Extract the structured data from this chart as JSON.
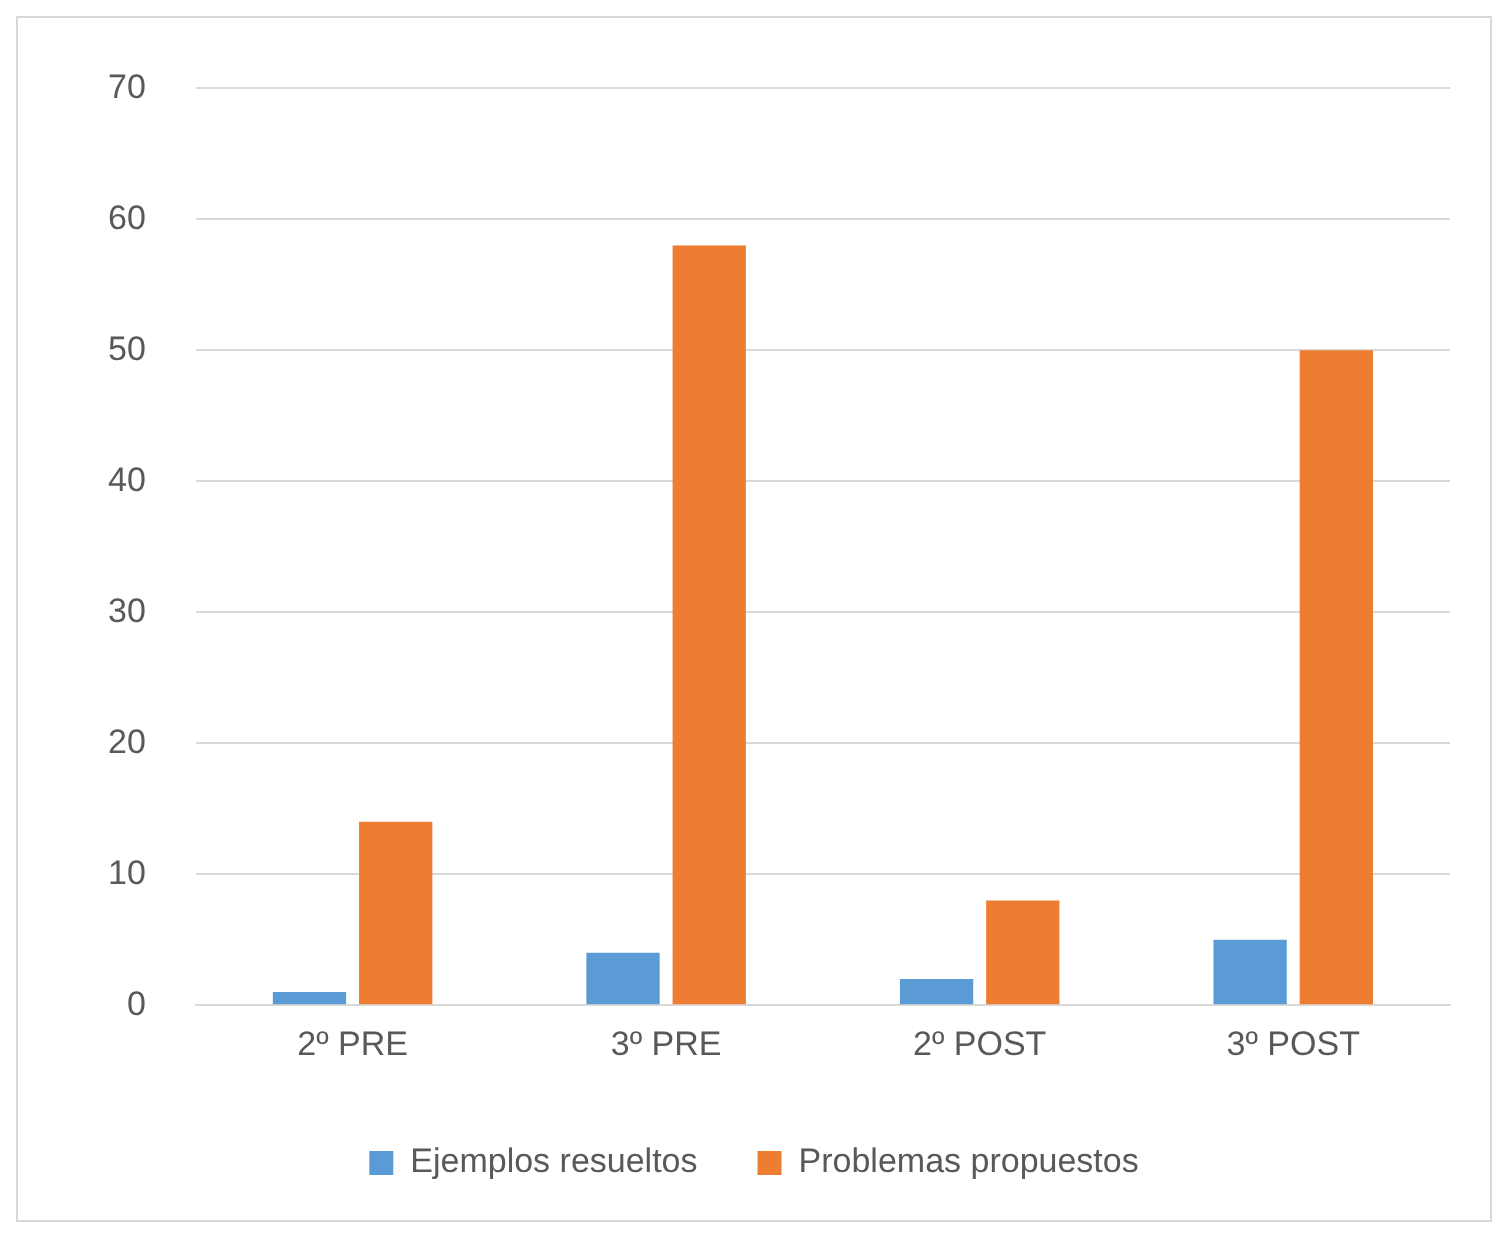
{
  "chart_data": {
    "type": "bar",
    "categories": [
      "2º PRE",
      "3º PRE",
      "2º POST",
      "3º POST"
    ],
    "series": [
      {
        "name": "Ejemplos resueltos",
        "color": "#5b9bd5",
        "values": [
          1,
          4,
          2,
          5
        ]
      },
      {
        "name": "Problemas propuestos",
        "color": "#ed7d31",
        "values": [
          14,
          58,
          8,
          50
        ]
      }
    ],
    "ylim": [
      0,
      70
    ],
    "yticks": [
      0,
      10,
      20,
      30,
      40,
      50,
      60,
      70
    ],
    "grid": "y",
    "legend": "bottom"
  }
}
